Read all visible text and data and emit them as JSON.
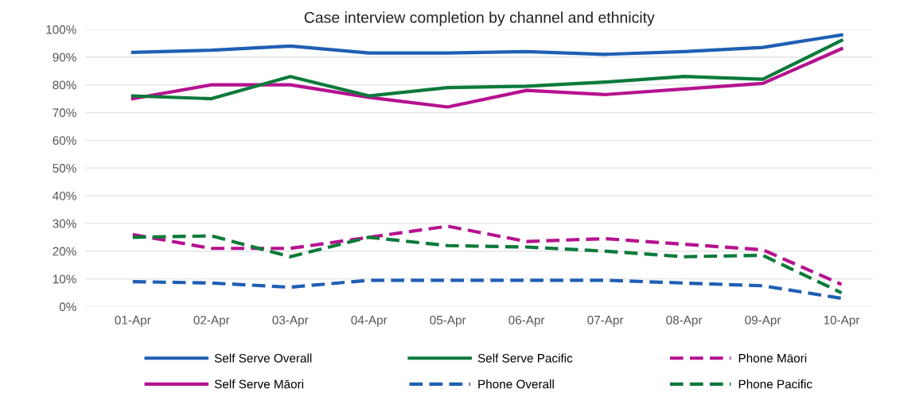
{
  "chart_data": {
    "type": "line",
    "title": "Case interview completion by channel and ethnicity",
    "categories": [
      "01-Apr",
      "02-Apr",
      "03-Apr",
      "04-Apr",
      "05-Apr",
      "06-Apr",
      "07-Apr",
      "08-Apr",
      "09-Apr",
      "10-Apr"
    ],
    "series": [
      {
        "name": "Self Serve Overall",
        "color": "#1f5fb4",
        "line_style": "solid",
        "values": [
          91.7,
          92.5,
          94,
          91.5,
          91.5,
          92,
          91,
          92,
          93.5,
          98
        ]
      },
      {
        "name": "Self Serve Māori",
        "color": "#b5128f",
        "line_style": "solid",
        "values": [
          75,
          80,
          80,
          75.5,
          72,
          78,
          76.5,
          78.5,
          80.5,
          93
        ]
      },
      {
        "name": "Self Serve Pacific",
        "color": "#0b7a3a",
        "line_style": "solid",
        "values": [
          76,
          75,
          83,
          76,
          79,
          79.5,
          81,
          83,
          82,
          96
        ]
      },
      {
        "name": "Phone Overall",
        "color": "#1f5fb4",
        "line_style": "dashed",
        "values": [
          9,
          8.5,
          7,
          9.5,
          9.5,
          9.5,
          9.5,
          8.5,
          7.5,
          3
        ]
      },
      {
        "name": "Phone Māori",
        "color": "#b5128f",
        "line_style": "dashed",
        "values": [
          26,
          21,
          21,
          25,
          29,
          23.5,
          24.5,
          22.5,
          20.5,
          8
        ]
      },
      {
        "name": "Phone Pacific",
        "color": "#0b7a3a",
        "line_style": "dashed",
        "values": [
          25,
          25.5,
          18,
          25,
          22,
          21.5,
          20,
          18,
          18.5,
          5
        ]
      }
    ],
    "ylim": [
      0,
      100
    ],
    "yticks": [
      {
        "value": 0,
        "label": "0%"
      },
      {
        "value": 10,
        "label": "10%"
      },
      {
        "value": 20,
        "label": "20%"
      },
      {
        "value": 30,
        "label": "30%"
      },
      {
        "value": 40,
        "label": "40%"
      },
      {
        "value": 50,
        "label": "50%"
      },
      {
        "value": 60,
        "label": "60%"
      },
      {
        "value": 70,
        "label": "70%"
      },
      {
        "value": 80,
        "label": "80%"
      },
      {
        "value": 90,
        "label": "90%"
      },
      {
        "value": 100,
        "label": "100%"
      }
    ],
    "grid": "y",
    "legend": "bottom",
    "marker": "none"
  }
}
